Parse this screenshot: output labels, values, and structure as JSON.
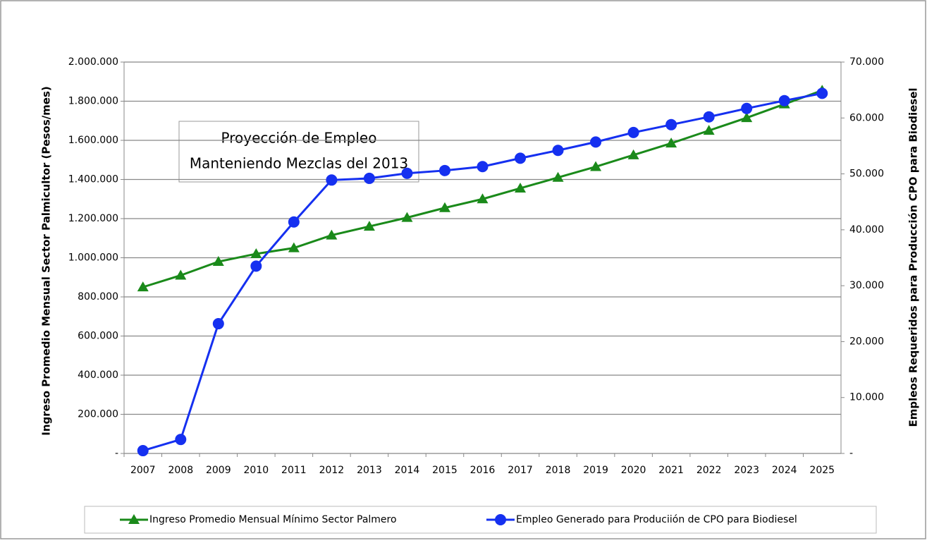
{
  "chart_data": {
    "type": "line",
    "annotation": [
      "Proyección de Empleo",
      "Manteniendo Mezclas del 2013"
    ],
    "y_label": "Ingreso Promedio Mensual Sector Palmicultor (Pesos/mes)",
    "y2_label": "Empleos Requeridos para Producción CPO para Biodiesel",
    "categories": [
      "2007",
      "2008",
      "2009",
      "2010",
      "2011",
      "2012",
      "2013",
      "2014",
      "2015",
      "2016",
      "2017",
      "2018",
      "2019",
      "2020",
      "2021",
      "2022",
      "2023",
      "2024",
      "2025"
    ],
    "series": [
      {
        "name": "Ingreso Promedio Mensual Mínimo Sector Palmero",
        "color": "#1a8a1a",
        "marker": "triangle",
        "axis": "y",
        "values": [
          850000,
          910000,
          980000,
          1020000,
          1050000,
          1115000,
          1160000,
          1205000,
          1255000,
          1300000,
          1355000,
          1410000,
          1465000,
          1525000,
          1585000,
          1650000,
          1715000,
          1785000,
          1855000
        ]
      },
      {
        "name": "Empleo Generado para Produciión de CPO para Biodiesel",
        "color": "#1530f0",
        "marker": "circle",
        "axis": "y2",
        "values": [
          500,
          2500,
          23200,
          33500,
          41400,
          48900,
          49200,
          50100,
          50600,
          51300,
          52800,
          54200,
          55700,
          57400,
          58800,
          60200,
          61700,
          63100,
          64400
        ]
      }
    ],
    "ylim": [
      0,
      2000000
    ],
    "yticks": [
      {
        "value": 0,
        "label": "-"
      },
      {
        "value": 200000,
        "label": "200.000"
      },
      {
        "value": 400000,
        "label": "400.000"
      },
      {
        "value": 600000,
        "label": "600.000"
      },
      {
        "value": 800000,
        "label": "800.000"
      },
      {
        "value": 1000000,
        "label": "1.000.000"
      },
      {
        "value": 1200000,
        "label": "1.200.000"
      },
      {
        "value": 1400000,
        "label": "1.400.000"
      },
      {
        "value": 1600000,
        "label": "1.600.000"
      },
      {
        "value": 1800000,
        "label": "1.800.000"
      },
      {
        "value": 2000000,
        "label": "2.000.000"
      }
    ],
    "y2lim": [
      0,
      70000
    ],
    "y2ticks": [
      {
        "value": 0,
        "label": "-"
      },
      {
        "value": 10000,
        "label": "10.000"
      },
      {
        "value": 20000,
        "label": "20.000"
      },
      {
        "value": 30000,
        "label": "30.000"
      },
      {
        "value": 40000,
        "label": "40.000"
      },
      {
        "value": 50000,
        "label": "50.000"
      },
      {
        "value": 60000,
        "label": "60.000"
      },
      {
        "value": 70000,
        "label": "70.000"
      }
    ],
    "grid": true,
    "legend": "bottom"
  }
}
